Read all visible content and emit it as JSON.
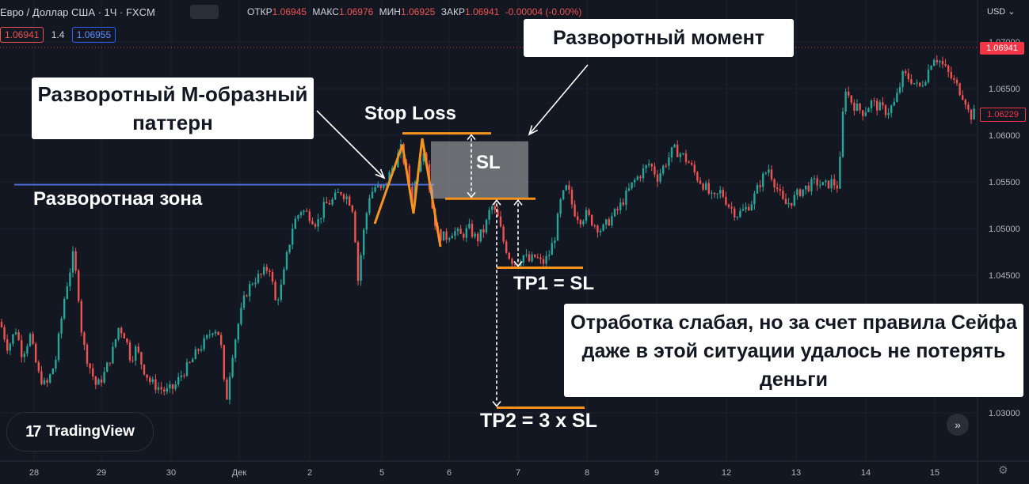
{
  "header": {
    "symbol": "Евро / Доллар США · 1Ч · FXCM",
    "open_label": "ОТКР",
    "open": "1.06945",
    "high_label": "МАКС",
    "high": "1.06976",
    "low_label": "МИН",
    "low": "1.06925",
    "close_label": "ЗАКР",
    "close": "1.06941",
    "change": "-0.00004 (-0.00%)",
    "bid": "1.06941",
    "spread": "1.4",
    "ask": "1.06955",
    "currency": "USD"
  },
  "annotations": {
    "pattern_title": "Разворотный М-образный паттерн",
    "moment_title": "Разворотный момент",
    "zone_label": "Разворотная зона",
    "stop_loss": "Stop Loss",
    "sl": "SL",
    "tp1": "TP1 = SL",
    "tp2": "TP2 = 3 x SL",
    "comment": "Отработка слабая, но за счет правила Сейфа даже в этой ситуации удалось не потерять деньги"
  },
  "branding": {
    "name": "TradingView"
  },
  "colors": {
    "up": "#26a69a",
    "down": "#ef5350",
    "zone": "#4a6fd8",
    "orange": "#f7931a",
    "bg": "#131722"
  },
  "chart_data": {
    "type": "candlestick",
    "y_ticks": [
      "1.07000",
      "1.06500",
      "1.06000",
      "1.05500",
      "1.05000",
      "1.04500",
      "1.03000"
    ],
    "x_ticks": [
      "28",
      "29",
      "30",
      "Дек",
      "2",
      "5",
      "6",
      "7",
      "8",
      "9",
      "12",
      "13",
      "14",
      "15"
    ],
    "price_labels": {
      "last": "1.06941",
      "marker": "1.06229"
    },
    "reversal_zone": 1.0547,
    "stop_loss_level": 1.0602,
    "entry_level": 1.0532,
    "tp1_level": 1.0458,
    "tp2_level": 1.0308,
    "path": [
      [
        0,
        1.04
      ],
      [
        10,
        1.0372
      ],
      [
        20,
        1.0392
      ],
      [
        28,
        1.0365
      ],
      [
        38,
        1.0385
      ],
      [
        48,
        1.0345
      ],
      [
        58,
        1.033
      ],
      [
        70,
        1.0358
      ],
      [
        82,
        1.043
      ],
      [
        92,
        1.047
      ],
      [
        98,
        1.044
      ],
      [
        104,
        1.038
      ],
      [
        112,
        1.0355
      ],
      [
        122,
        1.033
      ],
      [
        132,
        1.0345
      ],
      [
        142,
        1.0368
      ],
      [
        150,
        1.0395
      ],
      [
        158,
        1.0385
      ],
      [
        165,
        1.036
      ],
      [
        172,
        1.0372
      ],
      [
        180,
        1.0352
      ],
      [
        190,
        1.0335
      ],
      [
        200,
        1.033
      ],
      [
        210,
        1.0325
      ],
      [
        220,
        1.033
      ],
      [
        230,
        1.0345
      ],
      [
        240,
        1.0355
      ],
      [
        250,
        1.037
      ],
      [
        260,
        1.038
      ],
      [
        270,
        1.0395
      ],
      [
        278,
        1.0385
      ],
      [
        285,
        1.031
      ],
      [
        292,
        1.036
      ],
      [
        300,
        1.0395
      ],
      [
        310,
        1.043
      ],
      [
        320,
        1.0445
      ],
      [
        330,
        1.045
      ],
      [
        340,
        1.046
      ],
      [
        348,
        1.042
      ],
      [
        356,
        1.044
      ],
      [
        362,
        1.047
      ],
      [
        370,
        1.0505
      ],
      [
        380,
        1.052
      ],
      [
        390,
        1.0515
      ],
      [
        400,
        1.0505
      ],
      [
        410,
        1.0525
      ],
      [
        420,
        1.053
      ],
      [
        430,
        1.054
      ],
      [
        440,
        1.0532
      ],
      [
        446,
        1.052
      ],
      [
        452,
        1.0445
      ],
      [
        458,
        1.049
      ],
      [
        466,
        1.0535
      ],
      [
        474,
        1.0545
      ],
      [
        482,
        1.054
      ],
      [
        490,
        1.0555
      ],
      [
        498,
        1.057
      ],
      [
        506,
        1.0585
      ],
      [
        514,
        1.056
      ],
      [
        520,
        1.053
      ],
      [
        528,
        1.0568
      ],
      [
        536,
        1.059
      ],
      [
        544,
        1.053
      ],
      [
        552,
        1.0495
      ],
      [
        562,
        1.049
      ],
      [
        572,
        1.0498
      ],
      [
        582,
        1.0492
      ],
      [
        592,
        1.05
      ],
      [
        602,
        1.0488
      ],
      [
        612,
        1.05
      ],
      [
        620,
        1.0525
      ],
      [
        628,
        1.0512
      ],
      [
        636,
        1.0485
      ],
      [
        644,
        1.0468
      ],
      [
        652,
        1.0462
      ],
      [
        660,
        1.0472
      ],
      [
        668,
        1.0465
      ],
      [
        676,
        1.047
      ],
      [
        684,
        1.0462
      ],
      [
        692,
        1.047
      ],
      [
        700,
        1.049
      ],
      [
        708,
        1.053
      ],
      [
        716,
        1.0545
      ],
      [
        724,
        1.052
      ],
      [
        732,
        1.051
      ],
      [
        740,
        1.0515
      ],
      [
        750,
        1.0505
      ],
      [
        760,
        1.0498
      ],
      [
        770,
        1.051
      ],
      [
        780,
        1.052
      ],
      [
        790,
        1.0535
      ],
      [
        800,
        1.055
      ],
      [
        810,
        1.056
      ],
      [
        820,
        1.057
      ],
      [
        830,
        1.0555
      ],
      [
        840,
        1.057
      ],
      [
        850,
        1.0585
      ],
      [
        860,
        1.058
      ],
      [
        870,
        1.057
      ],
      [
        880,
        1.0555
      ],
      [
        890,
        1.0545
      ],
      [
        900,
        1.053
      ],
      [
        910,
        1.054
      ],
      [
        920,
        1.0525
      ],
      [
        930,
        1.0515
      ],
      [
        940,
        1.052
      ],
      [
        950,
        1.053
      ],
      [
        960,
        1.055
      ],
      [
        970,
        1.0565
      ],
      [
        980,
        1.0545
      ],
      [
        990,
        1.0525
      ],
      [
        1000,
        1.053
      ],
      [
        1010,
        1.054
      ],
      [
        1020,
        1.0545
      ],
      [
        1030,
        1.055
      ],
      [
        1040,
        1.0545
      ],
      [
        1050,
        1.055
      ],
      [
        1058,
        1.0545
      ],
      [
        1062,
        1.059
      ],
      [
        1066,
        1.0655
      ],
      [
        1072,
        1.064
      ],
      [
        1080,
        1.063
      ],
      [
        1090,
        1.0625
      ],
      [
        1100,
        1.0635
      ],
      [
        1110,
        1.063
      ],
      [
        1120,
        1.0625
      ],
      [
        1130,
        1.0635
      ],
      [
        1140,
        1.0665
      ],
      [
        1150,
        1.066
      ],
      [
        1160,
        1.065
      ],
      [
        1170,
        1.0665
      ],
      [
        1178,
        1.0685
      ],
      [
        1186,
        1.068
      ],
      [
        1194,
        1.067
      ],
      [
        1202,
        1.066
      ],
      [
        1210,
        1.065
      ],
      [
        1218,
        1.064
      ],
      [
        1224,
        1.062
      ],
      [
        1232,
        1.0625
      ]
    ]
  }
}
